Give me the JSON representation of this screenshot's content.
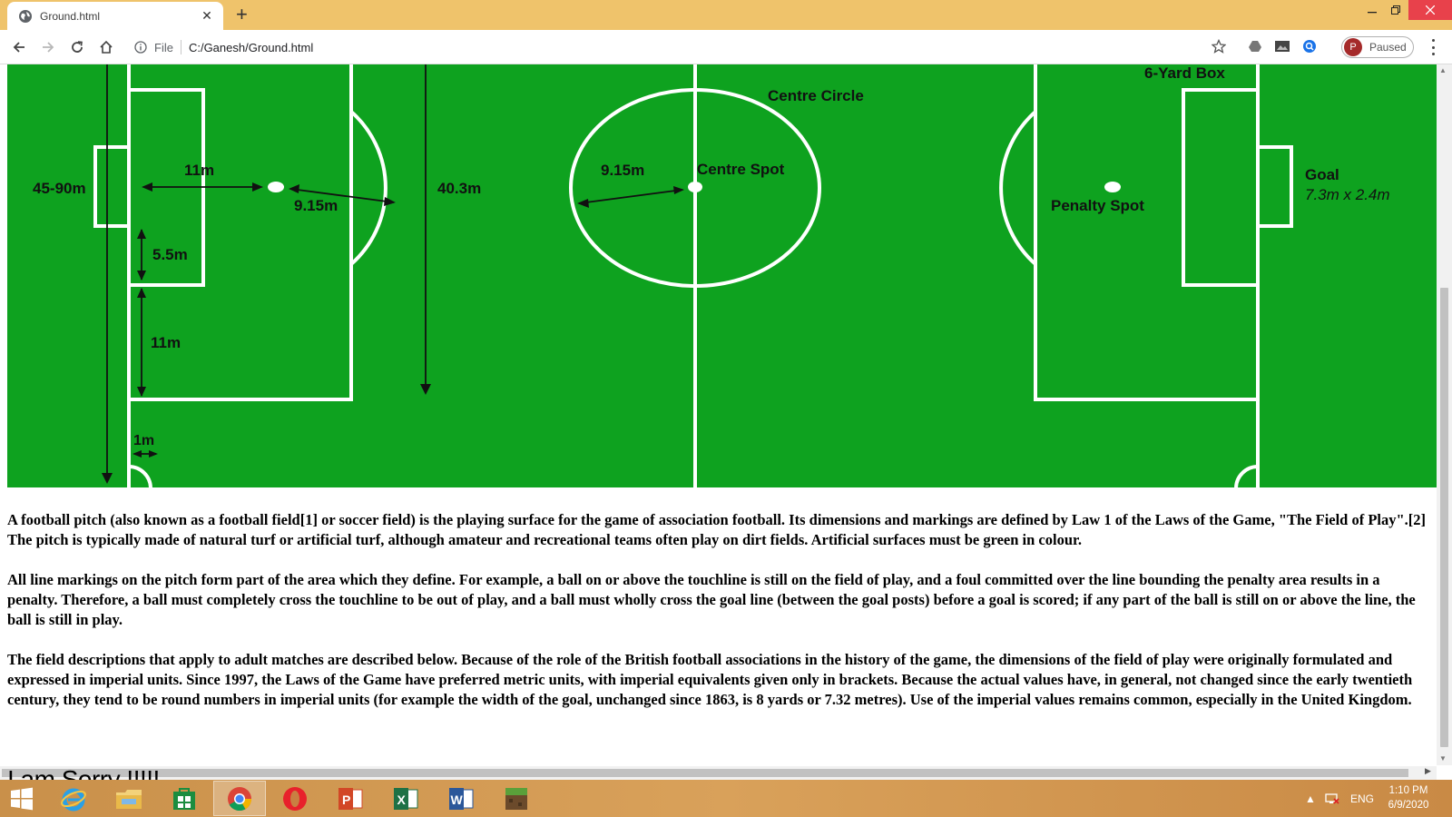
{
  "browser": {
    "tab_title": "Ground.html",
    "new_tab_glyph": "+",
    "close_glyph": "✕",
    "scheme_label": "File",
    "url": "C:/Ganesh/Ground.html",
    "profile_initial": "P",
    "profile_status": "Paused",
    "accent_color": "#efc36b"
  },
  "pitch": {
    "field_color": "#0ea21f",
    "labels": {
      "yard_box": "6-Yard Box",
      "centre_circle": "Centre Circle",
      "centre_spot": "Centre Spot",
      "penalty_spot": "Penalty Spot",
      "goal": "Goal",
      "goal_size": "7.3m x 2.4m",
      "width_range": "45-90m",
      "d_11m_top": "11m",
      "d_915_left": "9.15m",
      "d_55m": "5.5m",
      "d_11m_side": "11m",
      "d_1m": "1m",
      "d_403m": "40.3m",
      "d_915_centre": "9.15m"
    }
  },
  "article": {
    "p1": "A football pitch (also known as a football field[1] or soccer field) is the playing surface for the game of association football. Its dimensions and markings are defined by Law 1 of the Laws of the Game, \"The Field of Play\".[2] The pitch is typically made of natural turf or artificial turf, although amateur and recreational teams often play on dirt fields. Artificial surfaces must be green in colour.",
    "p2": "All line markings on the pitch form part of the area which they define. For example, a ball on or above the touchline is still on the field of play, and a foul committed over the line bounding the penalty area results in a penalty. Therefore, a ball must completely cross the touchline to be out of play, and a ball must wholly cross the goal line (between the goal posts) before a goal is scored; if any part of the ball is still on or above the line, the ball is still in play.",
    "p3": "The field descriptions that apply to adult matches are described below. Because of the role of the British football associations in the history of the game, the dimensions of the field of play were originally formulated and expressed in imperial units. Since 1997, the Laws of the Game have preferred metric units, with imperial equivalents given only in brackets. Because the actual values have, in general, not changed since the early twentieth century, they tend to be round numbers in imperial units (for example the width of the goal, unchanged since 1863, is 8 yards or 7.32 metres). Use of the imperial values remains common, especially in the United Kingdom.",
    "footer": "I am Sorry !!!!!"
  },
  "taskbar": {
    "language": "ENG",
    "time": "1:10 PM",
    "date": "6/9/2020",
    "apps": [
      "start-icon",
      "internet-explorer-icon",
      "file-explorer-icon",
      "store-icon",
      "chrome-icon",
      "opera-icon",
      "powerpoint-icon",
      "excel-icon",
      "word-icon",
      "minecraft-icon"
    ]
  }
}
